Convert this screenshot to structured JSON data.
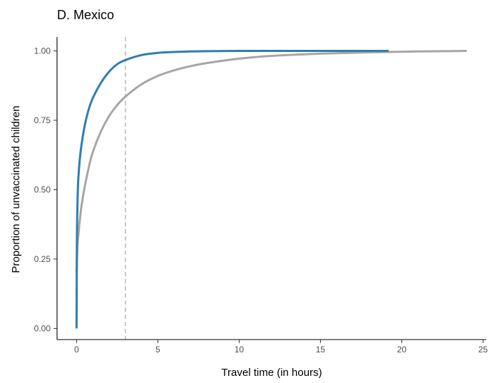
{
  "chart_data": {
    "type": "line",
    "title": "D. Mexico",
    "xlabel": "Travel time (in hours)",
    "ylabel": "Proportion of unvaccinated children",
    "xlim": [
      -1.2,
      25.2
    ],
    "ylim": [
      -0.04,
      1.05
    ],
    "x_ticks": [
      0,
      5,
      10,
      15,
      20,
      25
    ],
    "x_tick_labels": [
      "0",
      "5",
      "10",
      "15",
      "20",
      "25"
    ],
    "y_ticks": [
      0,
      0.25,
      0.5,
      0.75,
      1
    ],
    "y_tick_labels": [
      "0.00",
      "0.25",
      "0.50",
      "0.75",
      "1.00"
    ],
    "grid": false,
    "legend": "none",
    "reference_line": {
      "x": 3,
      "style": "dashed",
      "color": "#b3b3b3"
    },
    "series": [
      {
        "color": "#2f7db3",
        "x": [
          0,
          0.02,
          0.05,
          0.1,
          0.2,
          0.3,
          0.5,
          0.75,
          1,
          1.5,
          2,
          2.5,
          3,
          4,
          5,
          6,
          7,
          8,
          10,
          12,
          15,
          19.2
        ],
        "values": [
          0,
          0.3,
          0.43,
          0.53,
          0.61,
          0.66,
          0.73,
          0.79,
          0.83,
          0.885,
          0.925,
          0.952,
          0.967,
          0.985,
          0.993,
          0.996,
          0.998,
          0.999,
          1.0,
          1.0,
          1.0,
          1.0
        ]
      },
      {
        "color": "#a6a6a6",
        "x": [
          0,
          0.05,
          0.1,
          0.2,
          0.3,
          0.5,
          0.75,
          1,
          1.5,
          2,
          2.5,
          3,
          4,
          5,
          6,
          7,
          8,
          10,
          12,
          15,
          18,
          21,
          24
        ],
        "values": [
          0.2,
          0.29,
          0.33,
          0.39,
          0.44,
          0.51,
          0.58,
          0.635,
          0.71,
          0.765,
          0.805,
          0.835,
          0.88,
          0.91,
          0.93,
          0.945,
          0.956,
          0.972,
          0.982,
          0.99,
          0.995,
          0.998,
          1.0
        ]
      }
    ]
  }
}
